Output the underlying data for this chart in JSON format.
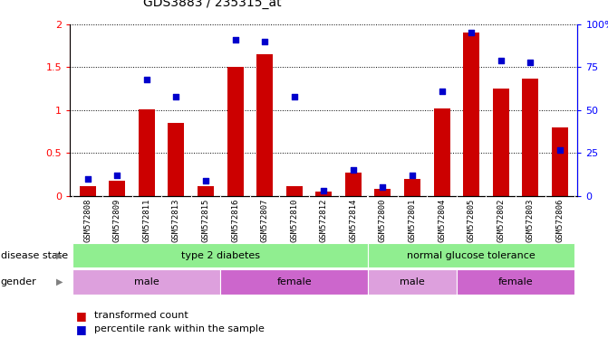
{
  "title": "GDS3883 / 235315_at",
  "samples": [
    "GSM572808",
    "GSM572809",
    "GSM572811",
    "GSM572813",
    "GSM572815",
    "GSM572816",
    "GSM572807",
    "GSM572810",
    "GSM572812",
    "GSM572814",
    "GSM572800",
    "GSM572801",
    "GSM572804",
    "GSM572805",
    "GSM572802",
    "GSM572803",
    "GSM572806"
  ],
  "red_values": [
    0.12,
    0.18,
    1.01,
    0.85,
    0.12,
    1.5,
    1.65,
    0.12,
    0.05,
    0.27,
    0.08,
    0.2,
    1.02,
    1.9,
    1.25,
    1.37,
    0.8
  ],
  "blue_values_pct": [
    10,
    12,
    68,
    58,
    9,
    91,
    90,
    58,
    3,
    15,
    5,
    12,
    61,
    95,
    79,
    78,
    27
  ],
  "ylim_left": [
    0,
    2
  ],
  "ylim_right": [
    0,
    100
  ],
  "yticks_left": [
    0,
    0.5,
    1.0,
    1.5,
    2.0
  ],
  "ytick_labels_left": [
    "0",
    "0.5",
    "1",
    "1.5",
    "2"
  ],
  "yticks_right": [
    0,
    25,
    50,
    75,
    100
  ],
  "ytick_labels_right": [
    "0",
    "25",
    "50",
    "75",
    "100%"
  ],
  "ds_groups": [
    {
      "label": "type 2 diabetes",
      "start": 0,
      "end": 9
    },
    {
      "label": "normal glucose tolerance",
      "start": 10,
      "end": 16
    }
  ],
  "gd_groups": [
    {
      "label": "male",
      "start": 0,
      "end": 4
    },
    {
      "label": "female",
      "start": 5,
      "end": 9
    },
    {
      "label": "male",
      "start": 10,
      "end": 12
    },
    {
      "label": "female",
      "start": 13,
      "end": 16
    }
  ],
  "bar_color": "#CC0000",
  "dot_color": "#0000CC",
  "bar_width": 0.55,
  "dot_size": 22,
  "legend_red": "transformed count",
  "legend_blue": "percentile rank within the sample",
  "label_disease_state": "disease state",
  "label_gender": "gender",
  "ds_color": "#90EE90",
  "gd_color_male": "#DDA0DD",
  "gd_color_female": "#CC66CC",
  "plot_bg": "#FFFFFF",
  "xtick_bg": "#D3D3D3"
}
